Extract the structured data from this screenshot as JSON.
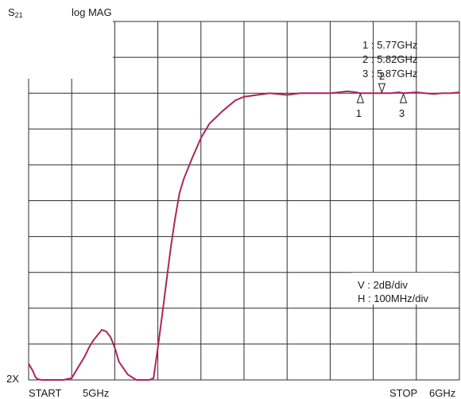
{
  "header": {
    "param_main": "S",
    "param_sub": "21",
    "format": "log MAG"
  },
  "footer": {
    "ref_label": "2X",
    "start_label": "START",
    "start_freq": "5GHz",
    "stop_label": "STOP",
    "stop_freq": "6GHz"
  },
  "marker_table": [
    "1 : 5.77GHz",
    "2 : 5.82GHz",
    "3 : 5.87GHz"
  ],
  "scale": {
    "vertical": "V : 2dB/div",
    "horizontal": "H : 100MHz/div"
  },
  "chart_data": {
    "type": "line",
    "xlabel": "",
    "ylabel": "",
    "xlim": [
      5.0,
      6.0
    ],
    "x_unit": "GHz",
    "ylim": [
      0,
      20
    ],
    "y_unit": "dB relative to bottom reference",
    "grid": true,
    "grid_divisions": {
      "x": 10,
      "y": 10
    },
    "trace_color": "#b0245a",
    "series": [
      {
        "x": [
          5.0,
          5.005,
          5.01,
          5.015,
          5.02,
          5.03,
          5.05,
          5.07,
          5.08,
          5.1,
          5.11,
          5.12,
          5.13,
          5.14,
          5.15,
          5.16,
          5.17,
          5.18,
          5.19,
          5.2,
          5.21,
          5.23,
          5.25,
          5.27,
          5.28,
          5.29,
          5.3,
          5.31,
          5.32,
          5.33,
          5.34,
          5.35,
          5.36,
          5.38,
          5.4,
          5.42,
          5.45,
          5.48,
          5.5,
          5.53,
          5.56,
          5.6,
          5.63,
          5.66,
          5.7,
          5.72,
          5.74,
          5.76,
          5.77,
          5.79,
          5.8,
          5.82,
          5.84,
          5.86,
          5.87,
          5.9,
          5.92,
          5.94,
          5.96,
          5.98,
          6.0
        ],
        "values": [
          0.9,
          0.7,
          0.5,
          0.2,
          0.05,
          0.0,
          0.0,
          0.0,
          0.0,
          0.1,
          0.5,
          0.9,
          1.3,
          1.8,
          2.2,
          2.5,
          2.8,
          2.7,
          2.4,
          1.8,
          1.0,
          0.3,
          0.0,
          0.0,
          0.0,
          0.1,
          1.8,
          3.6,
          5.5,
          7.4,
          9.0,
          10.4,
          11.2,
          12.4,
          13.5,
          14.3,
          15.0,
          15.6,
          15.8,
          15.9,
          16.0,
          15.9,
          16.0,
          16.0,
          16.0,
          16.05,
          16.1,
          16.05,
          16.0,
          16.0,
          16.0,
          16.0,
          16.0,
          16.05,
          16.0,
          16.05,
          16.0,
          15.95,
          16.0,
          16.0,
          16.05
        ]
      }
    ],
    "markers": [
      {
        "id": "1",
        "x": 5.77,
        "direction": "up"
      },
      {
        "id": "2",
        "x": 5.82,
        "direction": "down"
      },
      {
        "id": "3",
        "x": 5.87,
        "direction": "up"
      }
    ]
  }
}
